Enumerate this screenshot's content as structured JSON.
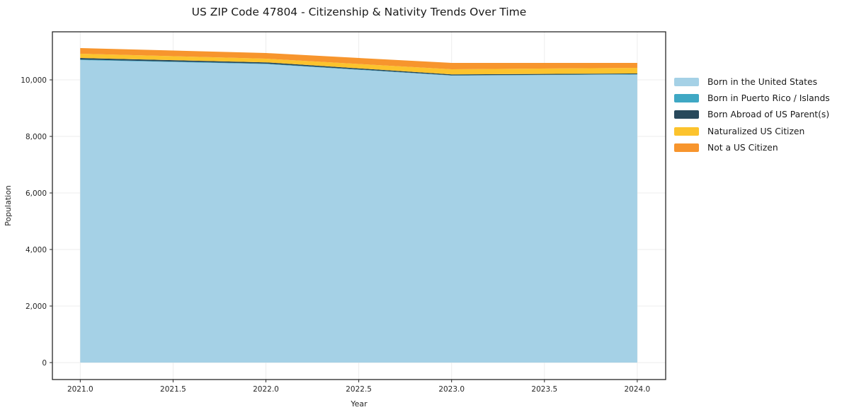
{
  "chart_data": {
    "type": "area",
    "stacked": true,
    "title": "US ZIP Code 47804 - Citizenship & Nativity Trends Over Time",
    "xlabel": "Year",
    "ylabel": "Population",
    "x": [
      2021,
      2022,
      2023,
      2024
    ],
    "series": [
      {
        "name": "Born in the United States",
        "color": "#a5d1e6",
        "values": [
          10700,
          10560,
          10150,
          10190
        ]
      },
      {
        "name": "Born in Puerto Rico / Islands",
        "color": "#3fa8c4",
        "values": [
          20,
          15,
          10,
          10
        ]
      },
      {
        "name": "Born Abroad of US Parent(s)",
        "color": "#28495c",
        "values": [
          55,
          45,
          35,
          25
        ]
      },
      {
        "name": "Naturalized US Citizen",
        "color": "#fcc32d",
        "values": [
          150,
          130,
          180,
          200
        ]
      },
      {
        "name": "Not a US Citizen",
        "color": "#f7952d",
        "values": [
          200,
          200,
          225,
          175
        ]
      }
    ],
    "x_ticks": [
      2021.0,
      2021.5,
      2022.0,
      2022.5,
      2023.0,
      2023.5,
      2024.0
    ],
    "x_tick_labels": [
      "2021.0",
      "2021.5",
      "2022.0",
      "2022.5",
      "2023.0",
      "2023.5",
      "2024.0"
    ],
    "y_ticks": [
      0,
      2000,
      4000,
      6000,
      8000,
      10000
    ],
    "y_tick_labels": [
      "0",
      "2,000",
      "4,000",
      "6,000",
      "8,000",
      "10,000"
    ],
    "xlim": [
      2020.85,
      2024.153
    ],
    "ylim": [
      -600,
      11700
    ],
    "grid": true,
    "legend_position": "right",
    "frame_color": "#262626",
    "grid_color": "#ececec"
  }
}
